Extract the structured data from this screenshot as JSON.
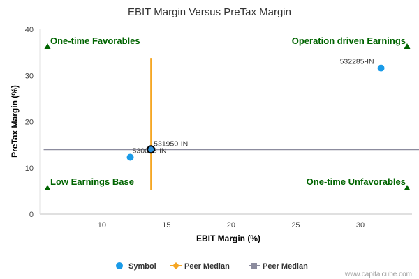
{
  "chart_data": {
    "type": "scatter",
    "title": "EBIT Margin Versus PreTax Margin",
    "xlabel": "EBIT Margin (%)",
    "ylabel": "PreTax Margin (%)",
    "xlim": [
      5.2,
      34
    ],
    "ylim": [
      0,
      40
    ],
    "x_ticks": [
      10,
      15,
      20,
      25,
      30
    ],
    "y_ticks": [
      0,
      10,
      20,
      30,
      40
    ],
    "grid": false,
    "legend_position": "bottom",
    "points": [
      {
        "label": "532285-IN",
        "x": 31.6,
        "y": 31.6,
        "color": "#1a9be8",
        "highlight": false
      },
      {
        "label": "530003-IN",
        "x": 12.2,
        "y": 12.3,
        "color": "#1a9be8",
        "highlight": false
      },
      {
        "label": "531950-IN",
        "x": 13.8,
        "y": 14.0,
        "color": "#1a9be8",
        "highlight": true
      }
    ],
    "peer_median_x": 13.8,
    "peer_median_y": 14.0,
    "median_x_range": [
      5.5,
      36.5
    ],
    "median_y_range": [
      5.2,
      33.8
    ],
    "quadrant_labels": {
      "top_left": "One-time Favorables",
      "top_right": "Operation driven Earnings",
      "bottom_left": "Low Earnings Base",
      "bottom_right": "One-time Unfavorables"
    },
    "legend": [
      {
        "name": "Symbol",
        "color": "#1a9be8",
        "marker": "circle"
      },
      {
        "name": "Peer Median",
        "color": "#f5a623",
        "marker": "diamond-line"
      },
      {
        "name": "Peer Median",
        "color": "#8c8c9e",
        "marker": "square-line"
      }
    ],
    "colors": {
      "quadrant_text": "#006400",
      "quadrant_marker": "#006400",
      "median_vertical": "#f5a623",
      "median_horizontal": "#8c8c9e"
    }
  },
  "credit": "www.capitalcube.com"
}
